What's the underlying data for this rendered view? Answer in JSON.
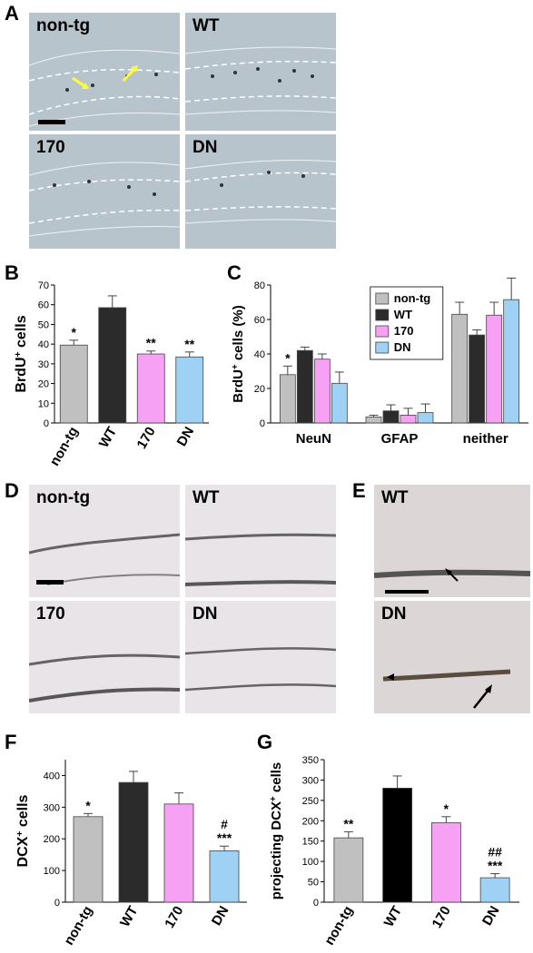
{
  "panel_letters": {
    "A": "A",
    "B": "B",
    "C": "C",
    "D": "D",
    "E": "E",
    "F": "F",
    "G": "G"
  },
  "panel_A": {
    "labels": [
      "non-tg",
      "WT",
      "170",
      "DN"
    ]
  },
  "panel_D": {
    "labels": [
      "non-tg",
      "WT",
      "170",
      "DN"
    ]
  },
  "panel_E": {
    "labels": [
      "WT",
      "DN"
    ]
  },
  "colors": {
    "non-tg": "#c0c0c0",
    "WT": "#2b2b2b",
    "WT_G": "#000000",
    "170": "#f7a1f5",
    "DN": "#9fd1f5"
  },
  "chart_data": [
    {
      "id": "B",
      "type": "bar",
      "categories": [
        "non-tg",
        "WT",
        "170",
        "DN"
      ],
      "values": [
        39.5,
        58.5,
        35,
        33.5
      ],
      "errors": [
        2.5,
        6,
        1.5,
        2.5
      ],
      "annotations": [
        "*",
        "",
        "**",
        "**"
      ],
      "ylabel_main": "BrdU",
      "ylabel_sup": "+",
      "ylabel_rest": " cells",
      "ylim": [
        0,
        70
      ],
      "yticks": [
        0,
        10,
        20,
        30,
        40,
        50,
        60,
        70
      ]
    },
    {
      "id": "C",
      "type": "bar",
      "groups": [
        "NeuN",
        "GFAP",
        "neither"
      ],
      "series": [
        {
          "name": "non-tg",
          "values": [
            28,
            3.5,
            63
          ],
          "errors": [
            5,
            1,
            7
          ]
        },
        {
          "name": "WT",
          "values": [
            42,
            7,
            51
          ],
          "errors": [
            2,
            3.5,
            3
          ]
        },
        {
          "name": "170",
          "values": [
            37,
            4.5,
            62.5
          ],
          "errors": [
            3,
            4,
            7.5
          ]
        },
        {
          "name": "DN",
          "values": [
            23,
            6,
            71.5
          ],
          "errors": [
            6.5,
            5,
            12.5
          ]
        }
      ],
      "annotations": [
        [
          "*",
          "",
          "",
          ""
        ],
        [
          "",
          "",
          "",
          ""
        ],
        [
          "",
          "",
          "",
          ""
        ]
      ],
      "ylabel_main": "BrdU",
      "ylabel_sup": "+",
      "ylabel_rest": " cells (%)",
      "ylim": [
        0,
        80
      ],
      "yticks": [
        0,
        20,
        40,
        60,
        80
      ],
      "legend": [
        "non-tg",
        "WT",
        "170",
        "DN"
      ]
    },
    {
      "id": "F",
      "type": "bar",
      "categories": [
        "non-tg",
        "WT",
        "170",
        "DN"
      ],
      "values": [
        270,
        378,
        310,
        162
      ],
      "errors": [
        10,
        35,
        35,
        15
      ],
      "annotations": [
        [
          "*"
        ],
        [],
        [],
        [
          "#",
          "***"
        ]
      ],
      "ylabel_main": "DCX",
      "ylabel_sup": "+",
      "ylabel_rest": " cells",
      "ylim": [
        0,
        450
      ],
      "yticks": [
        0,
        100,
        200,
        300,
        400
      ]
    },
    {
      "id": "G",
      "type": "bar",
      "categories": [
        "non-tg",
        "WT",
        "170",
        "DN"
      ],
      "values": [
        158,
        280,
        195,
        60
      ],
      "errors": [
        15,
        30,
        15,
        10
      ],
      "annotations": [
        [
          "**"
        ],
        [],
        [
          "*"
        ],
        [
          "##",
          "***"
        ]
      ],
      "ylabel_main": "projecting DCX",
      "ylabel_sup": "+",
      "ylabel_rest": " cells",
      "ylim": [
        0,
        350
      ],
      "yticks": [
        0,
        50,
        100,
        150,
        200,
        250,
        300,
        350
      ]
    }
  ]
}
